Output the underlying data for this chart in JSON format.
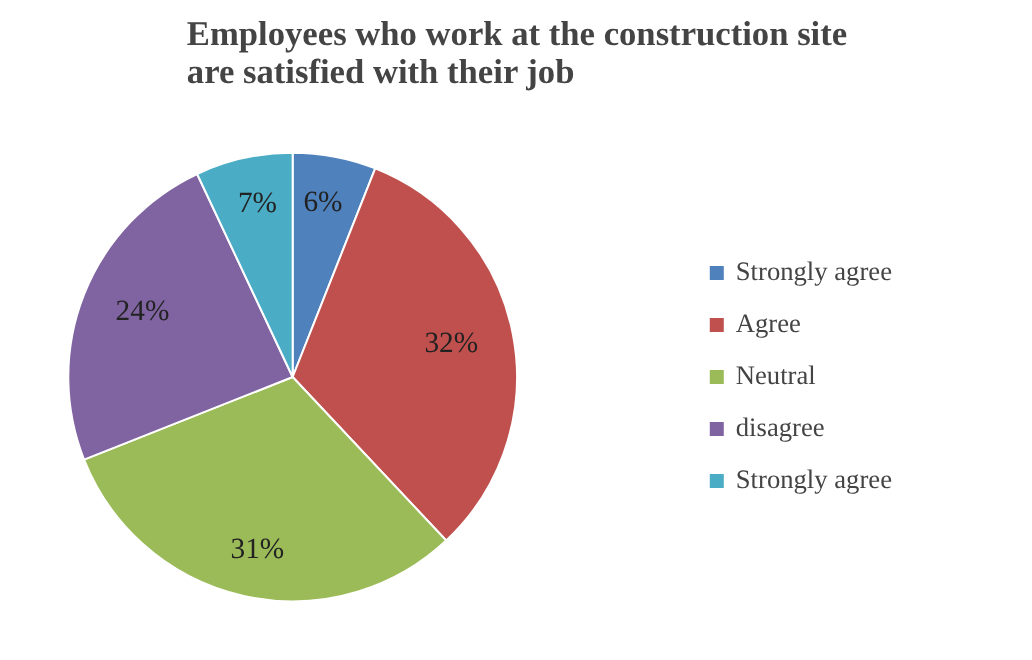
{
  "chart_data": {
    "type": "pie",
    "title": "Employees who work at the construction site\nare satisfied with their job",
    "categories": [
      "Strongly agree",
      "Agree",
      "Neutral",
      "disagree",
      "Strongly agree"
    ],
    "values": [
      6,
      32,
      31,
      24,
      7
    ],
    "colors": [
      "#4f81bd",
      "#c0504d",
      "#9bbb59",
      "#8064a2",
      "#4bacc6"
    ],
    "value_labels": [
      "6%",
      "32%",
      "31%",
      "24%",
      "7%"
    ],
    "legend": "right"
  }
}
